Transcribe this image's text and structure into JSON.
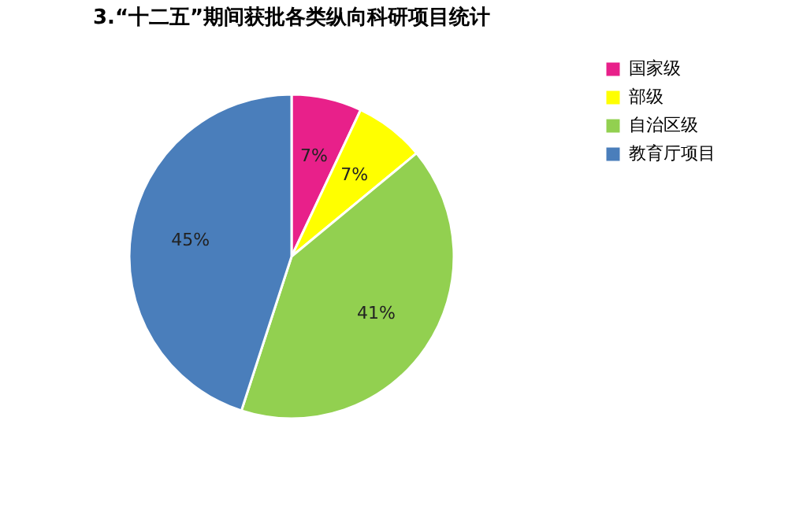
{
  "chart_data": {
    "type": "pie",
    "title": "3.“十二五”期间获批各类纵向科研项目统计",
    "categories": [
      "国家级",
      "部级",
      "自治区级",
      "教育厅项目"
    ],
    "values": [
      7,
      7,
      41,
      45
    ],
    "value_labels": [
      "7%",
      "7%",
      "41%",
      "45%"
    ],
    "colors": [
      "#e8208a",
      "#ffff00",
      "#92d050",
      "#4a7ebb"
    ],
    "legend": "right"
  }
}
